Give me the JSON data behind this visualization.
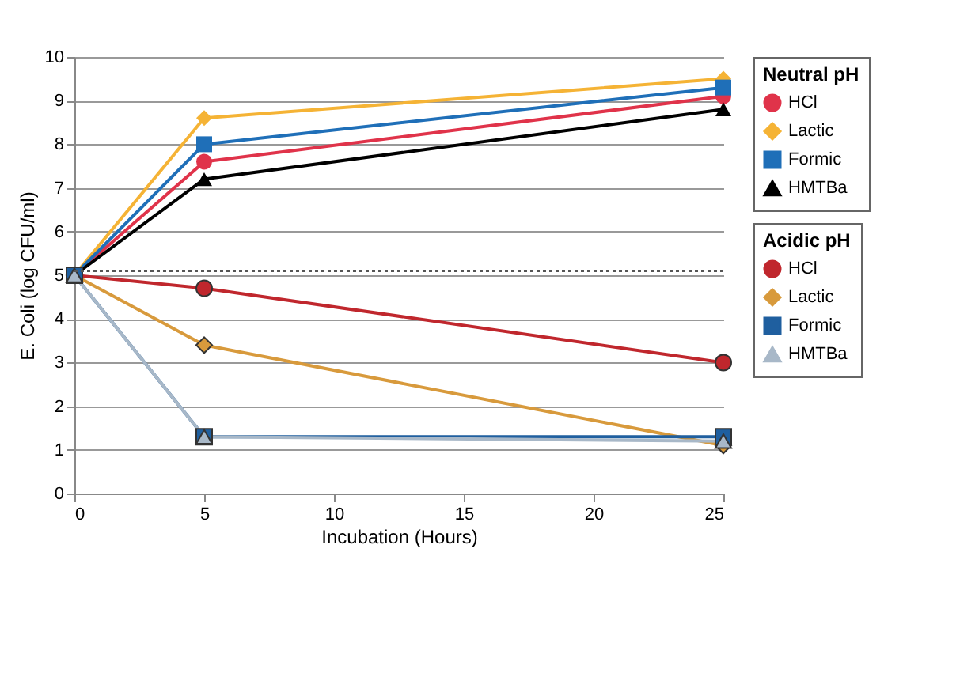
{
  "chart_data": {
    "type": "line",
    "xlabel": "Incubation (Hours)",
    "ylabel": "E. Coli (log CFU/ml)",
    "legend_title": [
      "Neutral pH",
      "Acidic pH"
    ],
    "x": [
      0,
      5,
      25
    ],
    "series": [
      {
        "name": "HCl",
        "marker": "circle",
        "color": "#e0334a",
        "values": [
          5.0,
          7.6,
          9.1
        ]
      },
      {
        "name": "Lactic",
        "marker": "diamond",
        "color": "#f5b335",
        "values": [
          5.0,
          8.6,
          9.5
        ]
      },
      {
        "name": "Formic",
        "marker": "square",
        "color": "#1f6fb8",
        "values": [
          5.0,
          8.0,
          9.3
        ]
      },
      {
        "name": "HMTBa",
        "marker": "triangle",
        "color": "#000000",
        "values": [
          5.0,
          7.2,
          8.8
        ]
      },
      {
        "name": "HCl",
        "marker": "circle",
        "color": "#c0272d",
        "values": [
          5.0,
          4.7,
          3.0
        ]
      },
      {
        "name": "Lactic",
        "marker": "diamond",
        "color": "#d89a3c",
        "values": [
          5.0,
          3.4,
          1.1
        ]
      },
      {
        "name": "Formic",
        "marker": "square",
        "color": "#1f5f9f",
        "values": [
          5.0,
          1.3,
          1.3
        ]
      },
      {
        "name": "HMTBa",
        "marker": "triangle",
        "color": "#a8b8c8",
        "values": [
          5.0,
          1.3,
          1.2
        ]
      }
    ],
    "xlim": [
      0,
      25
    ],
    "xticks": [
      0,
      5,
      10,
      15,
      20,
      25
    ],
    "ylim": [
      0,
      10
    ],
    "yticks": [
      0,
      1,
      2,
      3,
      4,
      5,
      6,
      7,
      8,
      9,
      10
    ],
    "grid": "y",
    "legend": "right",
    "ref_lines": [
      {
        "axis": "y",
        "value": 5.1,
        "line_style": "dotted",
        "color": "#555555"
      }
    ]
  }
}
